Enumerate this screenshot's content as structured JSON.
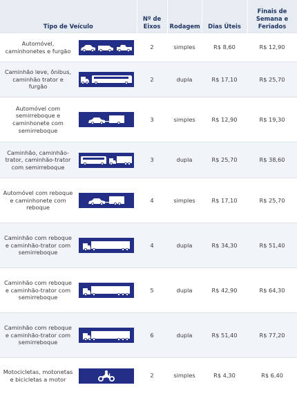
{
  "header": {
    "tipo_label": "Tipo de Veículo",
    "eixos_label": "Nº de Eixos",
    "rodagem_label": "Rodagem",
    "dias_label": "Dias Úteis",
    "finais_label": "Finais de Semana e Feriados"
  },
  "rows": [
    {
      "tipo": "Automóvel, caminhonetes e furgão",
      "icon": "car-pickup-van-icon",
      "eixos": "2",
      "rodagem": "simples",
      "dias": "R$ 8,60",
      "finais": "R$ 12,90"
    },
    {
      "tipo": "Caminhão leve, ônibus, caminhão trator e furgão",
      "icon": "truck-and-bus-icon",
      "eixos": "2",
      "rodagem": "dupla",
      "dias": "R$ 17,10",
      "finais": "R$ 25,70"
    },
    {
      "tipo": "Automóvel com semirreboque e caminhonete com semirreboque",
      "icon": "car-with-semitrailer-icon",
      "eixos": "3",
      "rodagem": "simples",
      "dias": "R$ 12,90",
      "finais": "R$ 19,30"
    },
    {
      "tipo": "Caminhão, caminhão-trator, caminhão-trator com semirreboque",
      "icon": "bus-and-truck-icon",
      "eixos": "3",
      "rodagem": "dupla",
      "dias": "R$ 25,70",
      "finais": "R$ 38,60"
    },
    {
      "tipo": "Automóvel com reboque e caminhonete com reboque",
      "icon": "car-with-trailer-icon",
      "eixos": "4",
      "rodagem": "simples",
      "dias": "R$ 17,10",
      "finais": "R$ 25,70"
    },
    {
      "tipo": "Caminhão com reboque e caminhão-trator com semirreboque",
      "icon": "truck-semitrailer-icon",
      "eixos": "4",
      "rodagem": "dupla",
      "dias": "R$ 34,30",
      "finais": "R$ 51,40"
    },
    {
      "tipo": "Caminhão com reboque e caminhão-trator com semirreboque",
      "icon": "truck-semitrailer-icon",
      "eixos": "5",
      "rodagem": "dupla",
      "dias": "R$ 42,90",
      "finais": "R$ 64,30"
    },
    {
      "tipo": "Caminhão com reboque e caminhão-trator com semirreboque",
      "icon": "truck-semitrailer-icon",
      "eixos": "6",
      "rodagem": "dupla",
      "dias": "R$ 51,40",
      "finais": "R$ 77,20"
    },
    {
      "tipo": "Motocicletas, motonetas e bicicletas a motor",
      "icon": "motorcycle-icon",
      "eixos": "2",
      "rodagem": "simples",
      "dias": "R$ 4,30",
      "finais": "R$ 6,40"
    }
  ]
}
